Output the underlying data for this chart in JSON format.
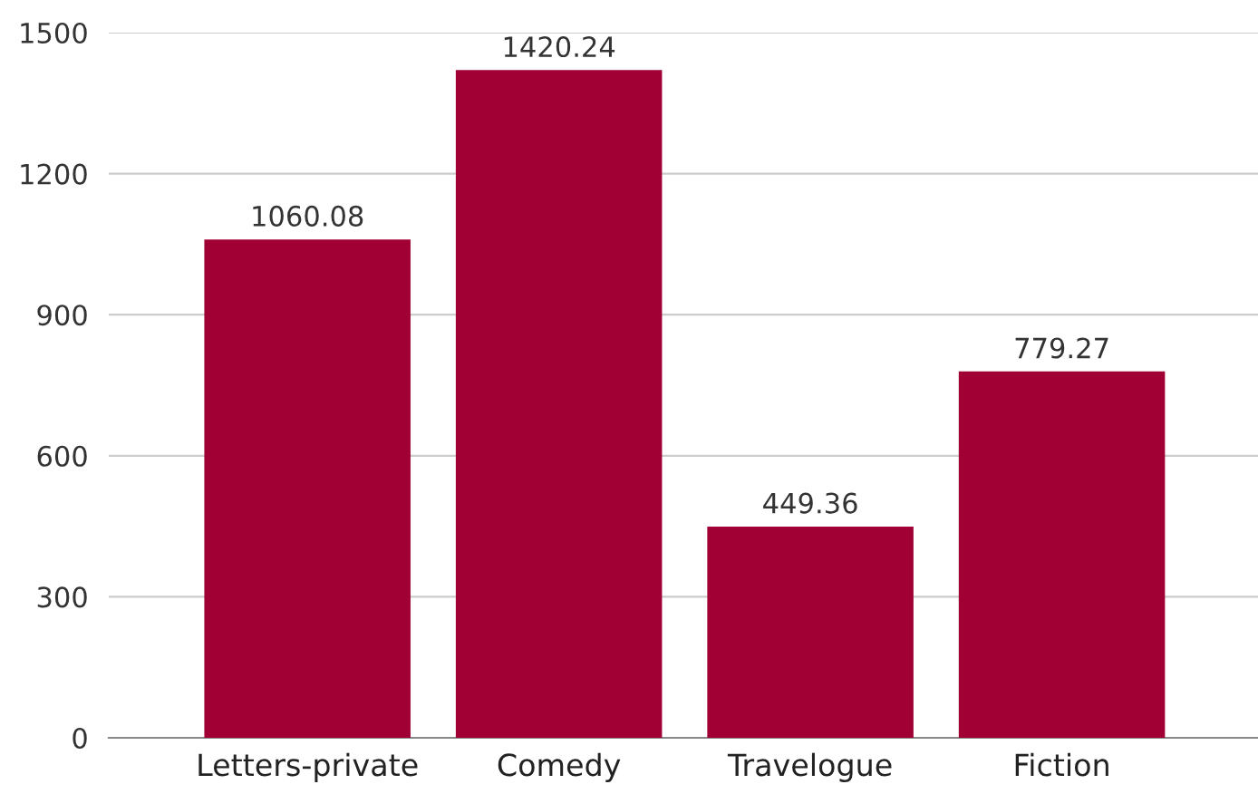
{
  "chart_data": {
    "type": "bar",
    "categories": [
      "Letters-private",
      "Comedy",
      "Travelogue",
      "Fiction"
    ],
    "values": [
      1060.08,
      1420.24,
      449.36,
      779.27
    ],
    "color": "#a00034",
    "ylim": [
      0,
      1500
    ],
    "yticks": [
      0,
      300,
      600,
      900,
      1200,
      1500
    ],
    "grid": "y",
    "data_labels": true
  }
}
